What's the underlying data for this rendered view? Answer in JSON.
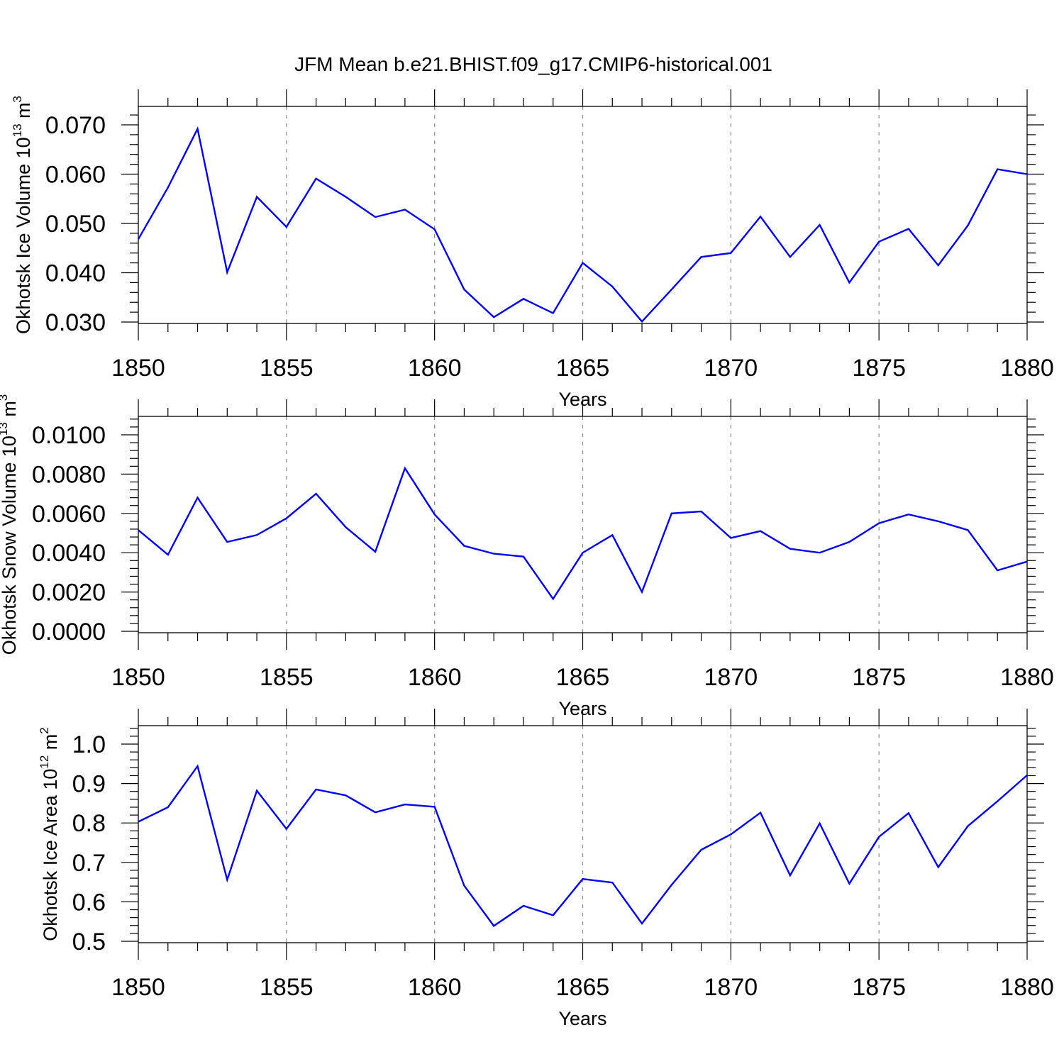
{
  "title": "JFM Mean b.e21.BHIST.f09_g17.CMIP6-historical.001",
  "chart_data": [
    {
      "type": "line",
      "ylabel": "Okhotsk Ice Volume 10",
      "ylabel_exp": "13",
      "ylabel_unit": " m",
      "ylabel_unit_exp": "3",
      "xlabel": "Years",
      "xlim": [
        1850,
        1880
      ],
      "ylim": [
        0.03,
        0.07
      ],
      "xticks": [
        "1850",
        "1855",
        "1860",
        "1865",
        "1870",
        "1875",
        "1880"
      ],
      "yticks": [
        "0.030",
        "0.040",
        "0.050",
        "0.060",
        "0.070"
      ],
      "grid": "vertical-dashed",
      "x": [
        1850,
        1851,
        1852,
        1853,
        1854,
        1855,
        1856,
        1857,
        1858,
        1859,
        1860,
        1861,
        1862,
        1863,
        1864,
        1865,
        1866,
        1867,
        1868,
        1869,
        1870,
        1871,
        1872,
        1873,
        1874,
        1875,
        1876,
        1877,
        1878,
        1879,
        1880
      ],
      "values": [
        0.0468,
        0.0573,
        0.0692,
        0.0401,
        0.0554,
        0.0493,
        0.0591,
        0.0554,
        0.0513,
        0.0528,
        0.0488,
        0.0366,
        0.031,
        0.0347,
        0.0318,
        0.042,
        0.0372,
        0.0301,
        0.0366,
        0.0432,
        0.044,
        0.0514,
        0.0432,
        0.0497,
        0.038,
        0.0463,
        0.0489,
        0.0415,
        0.0496,
        0.061,
        0.06
      ]
    },
    {
      "type": "line",
      "ylabel": "Okhotsk Snow Volume 10",
      "ylabel_exp": "13",
      "ylabel_unit": " m",
      "ylabel_unit_exp": "3",
      "xlabel": "Years",
      "xlim": [
        1850,
        1880
      ],
      "ylim": [
        0.0,
        0.01
      ],
      "xticks": [
        "1850",
        "1855",
        "1860",
        "1865",
        "1870",
        "1875",
        "1880"
      ],
      "yticks": [
        "0.0000",
        "0.0020",
        "0.0040",
        "0.0060",
        "0.0080",
        "0.0100"
      ],
      "grid": "vertical-dashed",
      "x": [
        1850,
        1851,
        1852,
        1853,
        1854,
        1855,
        1856,
        1857,
        1858,
        1859,
        1860,
        1861,
        1862,
        1863,
        1864,
        1865,
        1866,
        1867,
        1868,
        1869,
        1870,
        1871,
        1872,
        1873,
        1874,
        1875,
        1876,
        1877,
        1878,
        1879,
        1880
      ],
      "values": [
        0.00515,
        0.0039,
        0.0068,
        0.00455,
        0.0049,
        0.00575,
        0.007,
        0.0053,
        0.00405,
        0.0083,
        0.00595,
        0.00435,
        0.00395,
        0.0038,
        0.00165,
        0.004,
        0.0049,
        0.002,
        0.006,
        0.0061,
        0.00475,
        0.0051,
        0.0042,
        0.004,
        0.00455,
        0.0055,
        0.00595,
        0.0056,
        0.00515,
        0.0031,
        0.00355
      ]
    },
    {
      "type": "line",
      "ylabel": "Okhotsk Ice Area 10",
      "ylabel_exp": "12",
      "ylabel_unit": " m",
      "ylabel_unit_exp": "2",
      "xlabel": "Years",
      "xlim": [
        1850,
        1880
      ],
      "ylim": [
        0.5,
        1.0
      ],
      "xticks": [
        "1850",
        "1855",
        "1860",
        "1865",
        "1870",
        "1875",
        "1880"
      ],
      "yticks": [
        "0.5",
        "0.6",
        "0.7",
        "0.8",
        "0.9",
        "1.0"
      ],
      "grid": "vertical-dashed",
      "x": [
        1850,
        1851,
        1852,
        1853,
        1854,
        1855,
        1856,
        1857,
        1858,
        1859,
        1860,
        1861,
        1862,
        1863,
        1864,
        1865,
        1866,
        1867,
        1868,
        1869,
        1870,
        1871,
        1872,
        1873,
        1874,
        1875,
        1876,
        1877,
        1878,
        1879,
        1880
      ],
      "values": [
        0.803,
        0.84,
        0.944,
        0.656,
        0.882,
        0.785,
        0.885,
        0.87,
        0.827,
        0.847,
        0.841,
        0.641,
        0.539,
        0.59,
        0.566,
        0.658,
        0.649,
        0.545,
        0.643,
        0.732,
        0.771,
        0.826,
        0.667,
        0.799,
        0.646,
        0.765,
        0.825,
        0.688,
        0.792,
        0.855,
        0.921
      ]
    }
  ],
  "colors": {
    "series": "#0000ff",
    "axes": "#000000",
    "grid": "#888888"
  }
}
